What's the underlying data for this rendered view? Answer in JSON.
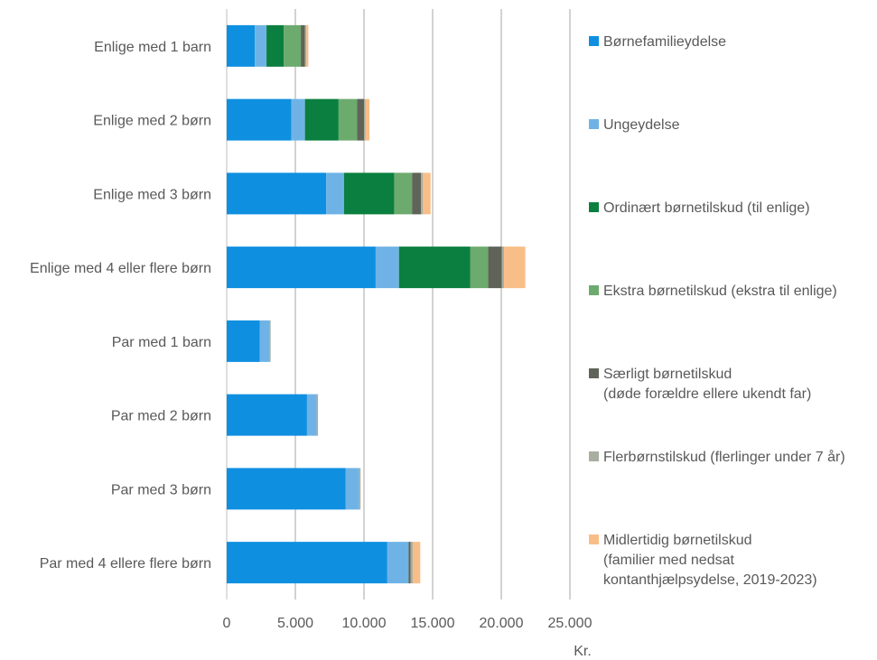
{
  "chart_data": {
    "type": "bar",
    "orientation": "horizontal",
    "stacked": true,
    "categories": [
      "Enlige med 1 barn",
      "Enlige med 2 børn",
      "Enlige med 3 børn",
      "Enlige med 4 eller flere børn",
      "Par med 1 barn",
      "Par med 2 børn",
      "Par med 3 børn",
      "Par med 4 ellere flere børn"
    ],
    "series": [
      {
        "name": "Børnefamilieydelse",
        "legend_lines": [
          "Børnefamilieydelse"
        ],
        "color": "#0F8FE0",
        "values": [
          2050,
          4700,
          7250,
          10850,
          2400,
          5850,
          8650,
          11700
        ]
      },
      {
        "name": "Ungeydelse",
        "legend_lines": [
          "Ungeydelse"
        ],
        "color": "#6FB3E6",
        "values": [
          850,
          1000,
          1300,
          1700,
          750,
          700,
          1000,
          1550
        ]
      },
      {
        "name": "Ordinært børnetilskud (til enlige)",
        "legend_lines": [
          "Ordinært børnetilskud (til enlige)"
        ],
        "color": "#0B7F3F",
        "values": [
          1250,
          2450,
          3650,
          5200,
          0,
          0,
          0,
          0
        ]
      },
      {
        "name": "Ekstra børnetilskud (ekstra til enlige)",
        "legend_lines": [
          "Ekstra børnetilskud (ekstra til enlige)"
        ],
        "color": "#6CAA6E",
        "values": [
          1250,
          1350,
          1300,
          1300,
          0,
          0,
          0,
          0
        ]
      },
      {
        "name": "Særligt børnetilskud (døde forældre ellere ukendt far)",
        "legend_lines": [
          "Særligt børnetilskud",
          "(døde forældre ellere ukendt far)"
        ],
        "color": "#5F6358",
        "values": [
          300,
          500,
          650,
          1000,
          0,
          0,
          0,
          150
        ]
      },
      {
        "name": "Flerbørnstilskud (flerlinger under 7 år)",
        "legend_lines": [
          "Flerbørnstilskud (flerlinger under 7 år)"
        ],
        "color": "#A8AEA0",
        "values": [
          100,
          100,
          150,
          150,
          50,
          100,
          100,
          150
        ]
      },
      {
        "name": "Midlertidig børnetilskud (familier med nedsat kontanthjælpsydelse, 2019-2023)",
        "legend_lines": [
          "Midlertidig børnetilskud",
          "(familier med nedsat",
          "kontanthjælpsydelse, 2019-2023)"
        ],
        "color": "#F9BE87",
        "values": [
          150,
          300,
          550,
          1550,
          0,
          0,
          0,
          550
        ]
      }
    ],
    "xlim": [
      0,
      25000
    ],
    "xticks": [
      0,
      5000,
      10000,
      15000,
      20000,
      25000
    ],
    "xtick_labels": [
      "0",
      "5.000",
      "10.000",
      "15.000",
      "20.000",
      "25.000"
    ],
    "xlabel": "Kr.",
    "ylabel": "",
    "title": "",
    "grid": "vertical",
    "legend_position": "right"
  }
}
